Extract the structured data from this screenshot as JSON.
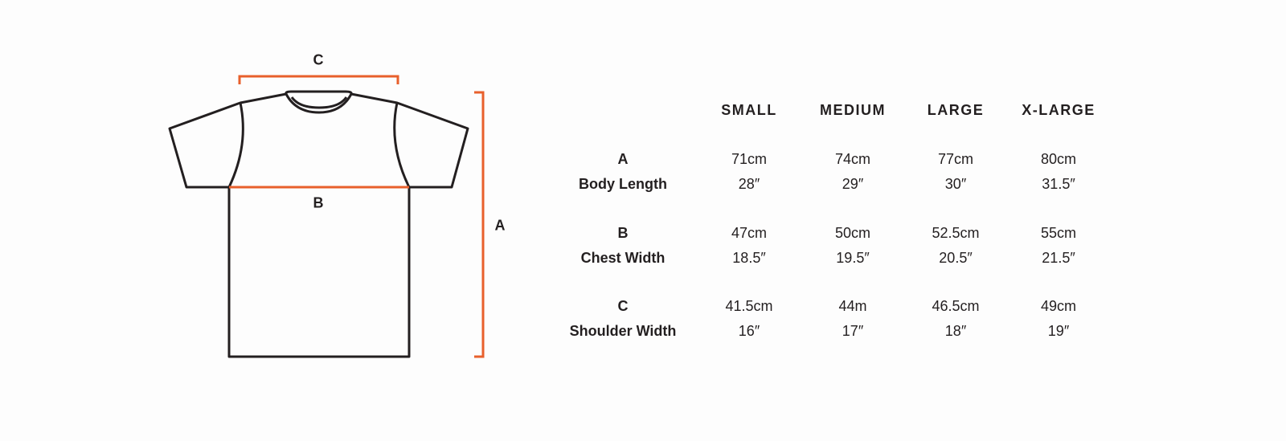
{
  "colors": {
    "accent": "#e8602c",
    "outline": "#231f20",
    "background": "#fdfdfd"
  },
  "diagram": {
    "icon": "tshirt-outline",
    "labels": {
      "a": "A",
      "b": "B",
      "c": "C"
    }
  },
  "table": {
    "headers": [
      "SMALL",
      "MEDIUM",
      "LARGE",
      "X-LARGE"
    ],
    "rows": [
      {
        "letter": "A",
        "name": "Body Length",
        "cm": [
          "71cm",
          "74cm",
          "77cm",
          "80cm"
        ],
        "in": [
          "28″",
          "29″",
          "30″",
          "31.5″"
        ]
      },
      {
        "letter": "B",
        "name": "Chest Width",
        "cm": [
          "47cm",
          "50cm",
          "52.5cm",
          "55cm"
        ],
        "in": [
          "18.5″",
          "19.5″",
          "20.5″",
          "21.5″"
        ]
      },
      {
        "letter": "C",
        "name": "Shoulder Width",
        "cm": [
          "41.5cm",
          "44m",
          "46.5cm",
          "49cm"
        ],
        "in": [
          "16″",
          "17″",
          "18″",
          "19″"
        ]
      }
    ]
  }
}
